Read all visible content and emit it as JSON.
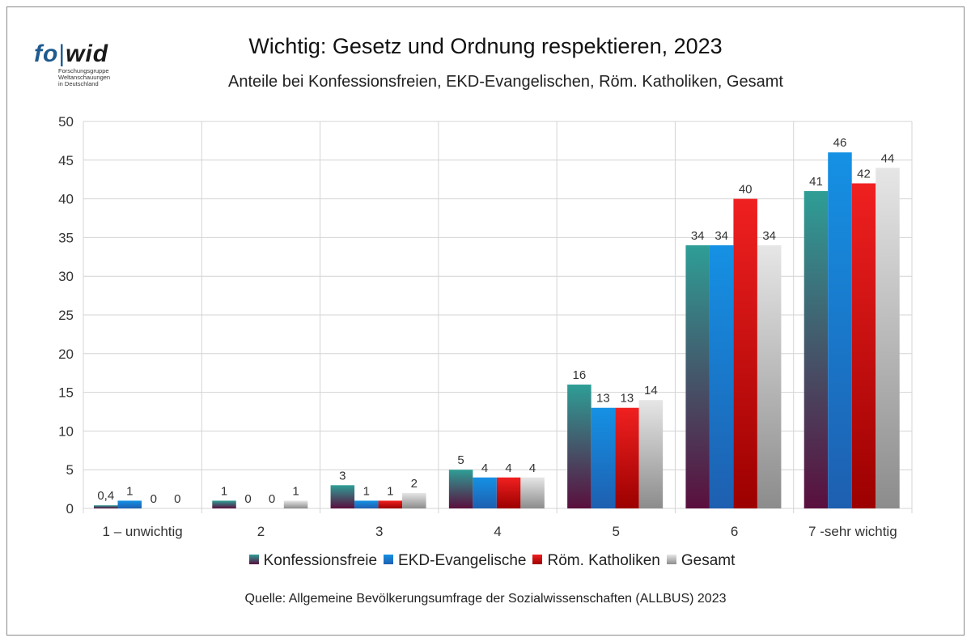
{
  "logo": {
    "text_fo": "fo",
    "text_wid": "wid",
    "sub_lines": [
      "Forschungsgruppe",
      "Weltanschauungen",
      "in Deutschland"
    ]
  },
  "colors": {
    "Konfessionsfreie": [
      "#2e9e96",
      "#5a0f3e"
    ],
    "EKD-Evangelische": [
      "#1591e4",
      "#1e5fb0"
    ],
    "Röm. Katholiken": [
      "#f02020",
      "#9c0000"
    ],
    "Gesamt": [
      "#e6e6e6",
      "#8c8c8c"
    ],
    "grid": "#d4d4d4",
    "axis_text": "#333333"
  },
  "chart_data": {
    "type": "bar",
    "title": "Wichtig: Gesetz und Ordnung respektieren, 2023",
    "subtitle": "Anteile bei Konfessionsfreien, EKD-Evangelischen, Röm. Katholiken, Gesamt",
    "categories": [
      "1 – unwichtig",
      "2",
      "3",
      "4",
      "5",
      "6",
      "7 -sehr wichtig"
    ],
    "series": [
      {
        "name": "Konfessionsfreie",
        "values": [
          0.4,
          1,
          3,
          5,
          16,
          34,
          41
        ],
        "labels": [
          "0,4",
          "1",
          "3",
          "5",
          "16",
          "34",
          "41"
        ]
      },
      {
        "name": "EKD-Evangelische",
        "values": [
          1,
          0,
          1,
          4,
          13,
          34,
          46
        ],
        "labels": [
          "1",
          "0",
          "1",
          "4",
          "13",
          "34",
          "46"
        ]
      },
      {
        "name": "Röm. Katholiken",
        "values": [
          0,
          0,
          1,
          4,
          13,
          40,
          42
        ],
        "labels": [
          "0",
          "0",
          "1",
          "4",
          "13",
          "40",
          "42"
        ]
      },
      {
        "name": "Gesamt",
        "values": [
          0,
          1,
          2,
          4,
          14,
          34,
          44
        ],
        "labels": [
          "0",
          "1",
          "2",
          "4",
          "14",
          "34",
          "44"
        ]
      }
    ],
    "ylim": [
      0,
      50
    ],
    "yticks": [
      "0",
      "5",
      "10",
      "15",
      "20",
      "25",
      "30",
      "35",
      "40",
      "45",
      "50"
    ],
    "grid": true,
    "legend_position": "bottom"
  },
  "source": "Quelle: Allgemeine Bevölkerungsumfrage der Sozialwissenschaften (ALLBUS) 2023"
}
